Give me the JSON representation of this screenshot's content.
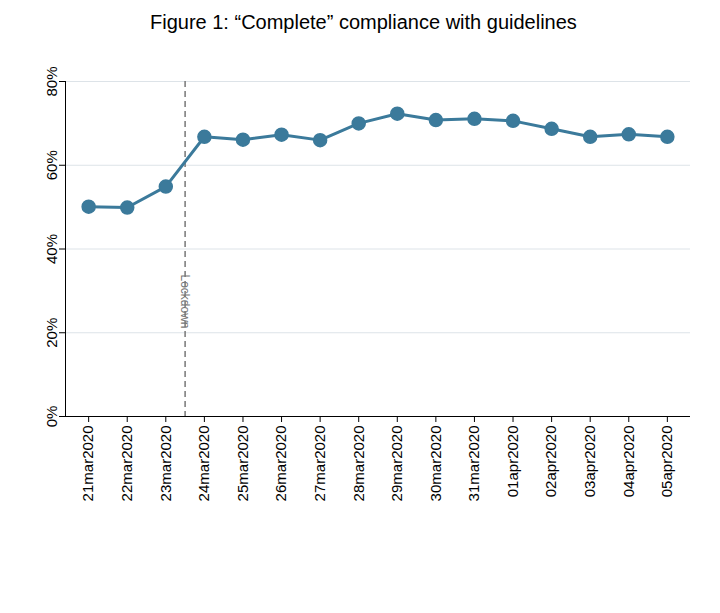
{
  "chart_data": {
    "type": "line",
    "title": "Figure 1: “Complete” compliance with guidelines",
    "categories": [
      "21mar2020",
      "22mar2020",
      "23mar2020",
      "24mar2020",
      "25mar2020",
      "26mar2020",
      "27mar2020",
      "28mar2020",
      "29mar2020",
      "30mar2020",
      "31mar2020",
      "01apr2020",
      "02apr2020",
      "03apr2020",
      "04apr2020",
      "05apr2020"
    ],
    "values": [
      50.1,
      49.9,
      54.9,
      66.8,
      66.1,
      67.3,
      66.0,
      70.0,
      72.3,
      70.8,
      71.1,
      70.6,
      68.7,
      66.8,
      67.4,
      66.8
    ],
    "color": "#3b7a9b",
    "marker": "circle",
    "ylim": [
      0,
      80
    ],
    "yticks": [
      {
        "value": 0,
        "label": "0%"
      },
      {
        "value": 20,
        "label": "20%"
      },
      {
        "value": 40,
        "label": "40%"
      },
      {
        "value": 60,
        "label": "60%"
      },
      {
        "value": 80,
        "label": "80%"
      }
    ],
    "grid": true,
    "annotations": [
      {
        "text": "Lockdown",
        "x": "24mar2020"
      }
    ]
  }
}
